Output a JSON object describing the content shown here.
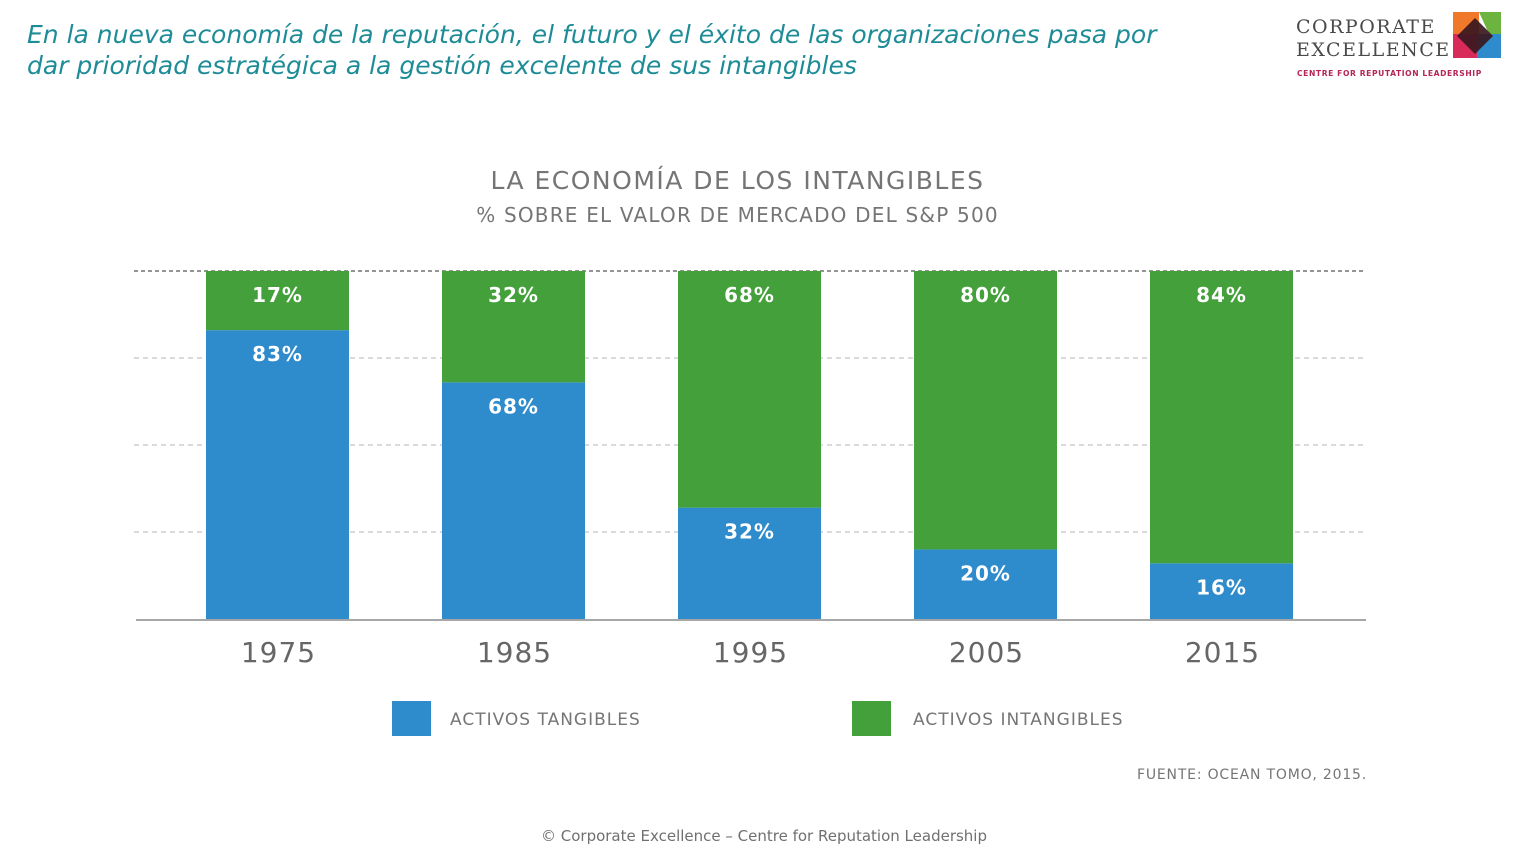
{
  "header": {
    "headline_line1": "En la nueva economía de la reputación, el futuro y el éxito de las organizaciones pasa por",
    "headline_line2": "dar prioridad estratégica a la gestión excelente de sus intangibles",
    "headline_color": "#1e8c96"
  },
  "logo": {
    "line1": "CORPORATE",
    "line2": "EXCELLENCE",
    "tagline": "CENTRE FOR REPUTATION LEADERSHIP",
    "icon": "corporate-excellence-logo-mark"
  },
  "chart_data": {
    "type": "bar",
    "stacked": true,
    "title": "LA ECONOMÍA DE LOS INTANGIBLES",
    "subtitle": "% SOBRE EL VALOR DE MERCADO DEL S&P 500",
    "categories": [
      "1975",
      "1985",
      "1995",
      "2005",
      "2015"
    ],
    "series": [
      {
        "name": "ACTIVOS TANGIBLES",
        "values": [
          83,
          68,
          32,
          20,
          16
        ],
        "color": "#2e8bcc"
      },
      {
        "name": "ACTIVOS INTANGIBLES",
        "values": [
          17,
          32,
          68,
          80,
          84
        ],
        "color": "#43a03a"
      }
    ],
    "data_labels": {
      "tangibles": [
        "83%",
        "68%",
        "32%",
        "20%",
        "16%"
      ],
      "intangibles": [
        "17%",
        "32%",
        "68%",
        "80%",
        "84%"
      ]
    },
    "ylim": [
      0,
      100
    ],
    "grid": true,
    "legend": "bottom"
  },
  "footer": {
    "source": "FUENTE: OCEAN TOMO, 2015.",
    "copyright": "© Corporate Excellence – Centre for Reputation Leadership"
  }
}
